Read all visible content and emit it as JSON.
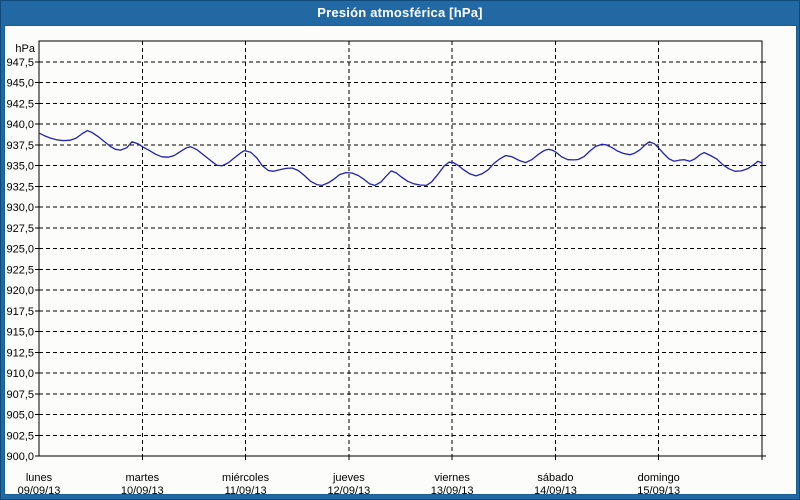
{
  "window": {
    "title": "Presión atmosférica [hPa]"
  },
  "colors": {
    "titlebar": "#2268a2",
    "frame_outline": "#0e4a7a",
    "background": "#fcfdfa",
    "axis": "#000000",
    "grid": "#000000",
    "text": "#000000",
    "title_text": "#ffffff",
    "line": "#2222aa"
  },
  "chart_data": {
    "type": "line",
    "title": "Presión atmosférica [hPa]",
    "ylabel": "hPa",
    "ylim": [
      900,
      950
    ],
    "y_tick_step": 2.5,
    "grid": true,
    "legend_position": "none",
    "y_ticks": [
      {
        "label": "947,5",
        "value": 947.5
      },
      {
        "label": "945,0",
        "value": 945.0
      },
      {
        "label": "942,5",
        "value": 942.5
      },
      {
        "label": "940,0",
        "value": 940.0
      },
      {
        "label": "937,5",
        "value": 937.5
      },
      {
        "label": "935,0",
        "value": 935.0
      },
      {
        "label": "932,5",
        "value": 932.5
      },
      {
        "label": "930,0",
        "value": 930.0
      },
      {
        "label": "927,5",
        "value": 927.5
      },
      {
        "label": "925,0",
        "value": 925.0
      },
      {
        "label": "922,5",
        "value": 922.5
      },
      {
        "label": "920,0",
        "value": 920.0
      },
      {
        "label": "917,5",
        "value": 917.5
      },
      {
        "label": "915,0",
        "value": 915.0
      },
      {
        "label": "912,5",
        "value": 912.5
      },
      {
        "label": "910,0",
        "value": 910.0
      },
      {
        "label": "907,5",
        "value": 907.5
      },
      {
        "label": "905,0",
        "value": 905.0
      },
      {
        "label": "902,5",
        "value": 902.5
      },
      {
        "label": "900,0",
        "value": 900.0
      }
    ],
    "x_days": [
      {
        "name": "lunes",
        "date": "09/09/13"
      },
      {
        "name": "martes",
        "date": "10/09/13"
      },
      {
        "name": "miércoles",
        "date": "11/09/13"
      },
      {
        "name": "jueves",
        "date": "12/09/13"
      },
      {
        "name": "viernes",
        "date": "13/09/13"
      },
      {
        "name": "sábado",
        "date": "14/09/13"
      },
      {
        "name": "domingo",
        "date": "15/09/13"
      }
    ],
    "series": [
      {
        "name": "Presión atmosférica",
        "unit": "hPa",
        "color": "#2222aa",
        "points": [
          [
            0,
            938.9
          ],
          [
            0.05,
            938.6
          ],
          [
            0.11,
            938.3
          ],
          [
            0.17,
            938.1
          ],
          [
            0.24,
            938
          ],
          [
            0.3,
            938.05
          ],
          [
            0.36,
            938.3
          ],
          [
            0.42,
            938.85
          ],
          [
            0.47,
            939.2
          ],
          [
            0.51,
            939
          ],
          [
            0.57,
            938.5
          ],
          [
            0.63,
            937.9
          ],
          [
            0.69,
            937.3
          ],
          [
            0.74,
            936.95
          ],
          [
            0.79,
            936.85
          ],
          [
            0.85,
            937.15
          ],
          [
            0.9,
            937.85
          ],
          [
            0.96,
            937.6
          ],
          [
            1.01,
            937.2
          ],
          [
            1.07,
            936.8
          ],
          [
            1.13,
            936.35
          ],
          [
            1.19,
            936.05
          ],
          [
            1.25,
            936
          ],
          [
            1.31,
            936.2
          ],
          [
            1.37,
            936.7
          ],
          [
            1.43,
            937.15
          ],
          [
            1.47,
            937.25
          ],
          [
            1.53,
            936.9
          ],
          [
            1.6,
            936.2
          ],
          [
            1.67,
            935.5
          ],
          [
            1.72,
            935.05
          ],
          [
            1.77,
            934.95
          ],
          [
            1.83,
            935.3
          ],
          [
            1.89,
            935.9
          ],
          [
            1.95,
            936.5
          ],
          [
            1.99,
            936.8
          ],
          [
            2.05,
            936.6
          ],
          [
            2.11,
            935.9
          ],
          [
            2.16,
            935
          ],
          [
            2.22,
            934.4
          ],
          [
            2.27,
            934.3
          ],
          [
            2.33,
            934.5
          ],
          [
            2.39,
            934.65
          ],
          [
            2.45,
            934.7
          ],
          [
            2.51,
            934.4
          ],
          [
            2.57,
            933.8
          ],
          [
            2.63,
            933.1
          ],
          [
            2.69,
            932.7
          ],
          [
            2.74,
            932.6
          ],
          [
            2.8,
            932.9
          ],
          [
            2.86,
            933.4
          ],
          [
            2.91,
            933.9
          ],
          [
            2.97,
            934.15
          ],
          [
            3.03,
            934.1
          ],
          [
            3.09,
            933.8
          ],
          [
            3.15,
            933.3
          ],
          [
            3.2,
            932.8
          ],
          [
            3.25,
            932.6
          ],
          [
            3.31,
            933
          ],
          [
            3.36,
            933.7
          ],
          [
            3.41,
            934.35
          ],
          [
            3.46,
            934.1
          ],
          [
            3.51,
            933.6
          ],
          [
            3.57,
            933.1
          ],
          [
            3.63,
            932.8
          ],
          [
            3.69,
            932.65
          ],
          [
            3.75,
            932.6
          ],
          [
            3.8,
            933
          ],
          [
            3.86,
            933.9
          ],
          [
            3.92,
            934.9
          ],
          [
            3.97,
            935.4
          ],
          [
            4.01,
            935.35
          ],
          [
            4.06,
            935
          ],
          [
            4.11,
            934.5
          ],
          [
            4.17,
            934
          ],
          [
            4.23,
            933.75
          ],
          [
            4.29,
            934
          ],
          [
            4.35,
            934.5
          ],
          [
            4.4,
            935.2
          ],
          [
            4.46,
            935.8
          ],
          [
            4.52,
            936.2
          ],
          [
            4.58,
            936.05
          ],
          [
            4.65,
            935.6
          ],
          [
            4.71,
            935.35
          ],
          [
            4.77,
            935.7
          ],
          [
            4.83,
            936.3
          ],
          [
            4.89,
            936.8
          ],
          [
            4.93,
            936.95
          ],
          [
            4.97,
            936.85
          ],
          [
            5.01,
            936.55
          ],
          [
            5.06,
            936.05
          ],
          [
            5.12,
            935.7
          ],
          [
            5.18,
            935.68
          ],
          [
            5.22,
            935.72
          ],
          [
            5.28,
            936.1
          ],
          [
            5.33,
            936.7
          ],
          [
            5.39,
            937.3
          ],
          [
            5.45,
            937.55
          ],
          [
            5.49,
            937.5
          ],
          [
            5.55,
            937.15
          ],
          [
            5.6,
            936.75
          ],
          [
            5.66,
            936.45
          ],
          [
            5.72,
            936.3
          ],
          [
            5.76,
            936.45
          ],
          [
            5.82,
            936.9
          ],
          [
            5.87,
            937.5
          ],
          [
            5.91,
            937.85
          ],
          [
            5.96,
            937.6
          ],
          [
            6,
            937.1
          ],
          [
            6.05,
            936.4
          ],
          [
            6.1,
            935.8
          ],
          [
            6.15,
            935.5
          ],
          [
            6.2,
            935.65
          ],
          [
            6.25,
            935.7
          ],
          [
            6.3,
            935.5
          ],
          [
            6.35,
            935.8
          ],
          [
            6.4,
            936.3
          ],
          [
            6.44,
            936.55
          ],
          [
            6.5,
            936.2
          ],
          [
            6.56,
            935.8
          ],
          [
            6.62,
            935.1
          ],
          [
            6.68,
            934.6
          ],
          [
            6.74,
            934.3
          ],
          [
            6.8,
            934.35
          ],
          [
            6.86,
            934.6
          ],
          [
            6.92,
            935.1
          ],
          [
            6.96,
            935.5
          ],
          [
            7,
            935.3
          ]
        ]
      }
    ]
  }
}
